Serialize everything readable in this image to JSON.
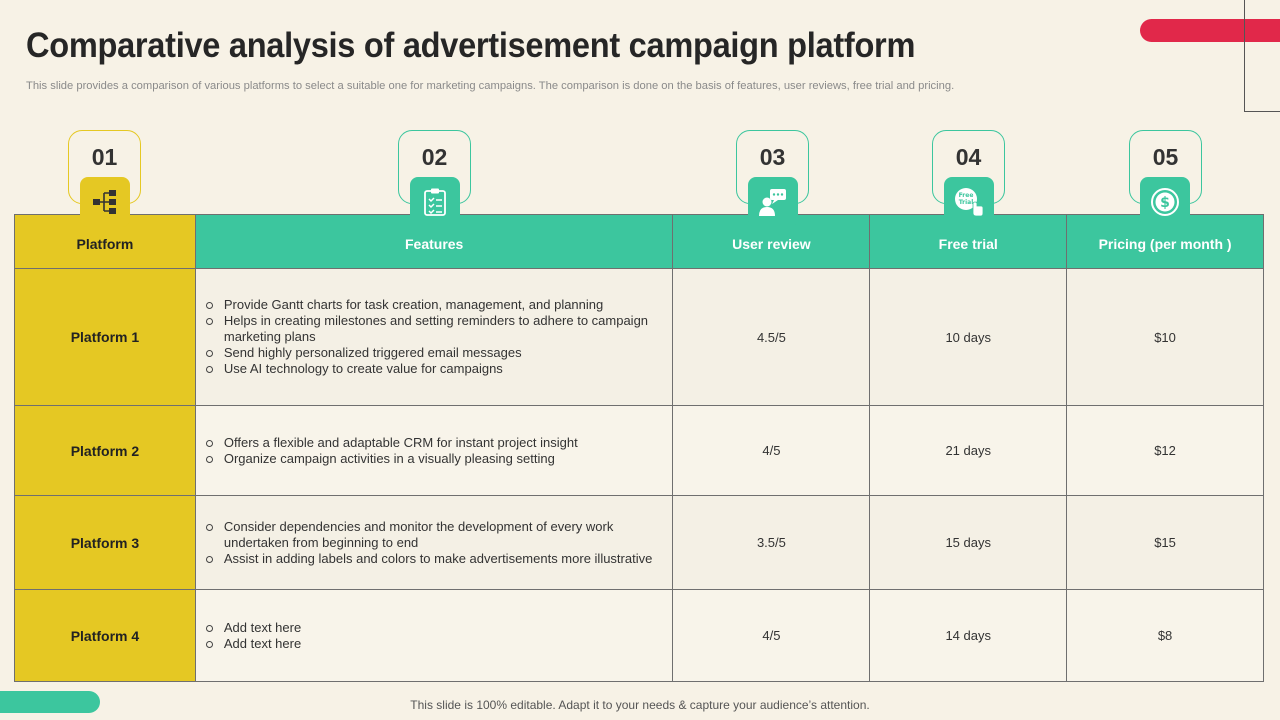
{
  "title": "Comparative analysis of advertisement campaign platform",
  "subtitle": "This slide provides a comparison of various platforms to select a suitable one for marketing campaigns. The comparison is done on the basis of features, user reviews, free trial and pricing.",
  "footer": "This slide is 100% editable. Adapt it to your needs & capture your audience’s attention.",
  "badges": [
    {
      "number": "01",
      "icon": "hierarchy-icon"
    },
    {
      "number": "02",
      "icon": "checklist-icon"
    },
    {
      "number": "03",
      "icon": "user-review-icon"
    },
    {
      "number": "04",
      "icon": "free-trial-icon"
    },
    {
      "number": "05",
      "icon": "dollar-icon"
    }
  ],
  "headers": [
    "Platform",
    "Features",
    "User review",
    "Free trial",
    "Pricing (per month )"
  ],
  "rows": [
    {
      "platform": "Platform 1",
      "features": [
        "Provide  Gantt charts for task creation, management,  and planning",
        "Helps in creating milestones and setting reminders to adhere to campaign marketing plans",
        "Send highly personalized triggered email messages",
        "Use AI technology to create value  for campaigns"
      ],
      "user_review": "4.5/5",
      "free_trial": "10 days",
      "pricing": "$10"
    },
    {
      "platform": "Platform 2",
      "features": [
        "Offers  a flexible and adaptable CRM for instant project insight",
        "Organize campaign  activities in a visually  pleasing setting"
      ],
      "user_review": "4/5",
      "free_trial": "21 days",
      "pricing": "$12"
    },
    {
      "platform": "Platform 3",
      "features": [
        "Consider dependencies  and monitor the development  of every  work undertaken from beginning to end",
        "Assist in adding labels and colors to make advertisements  more illustrative"
      ],
      "user_review": "3.5/5",
      "free_trial": "15 days",
      "pricing": "$15"
    },
    {
      "platform": "Platform 4",
      "features": [
        "Add text here",
        "Add text here"
      ],
      "user_review": "4/5",
      "free_trial": "14 days",
      "pricing": "$8"
    }
  ],
  "colors": {
    "accent_green": "#3cc69e",
    "accent_yellow": "#e5c823",
    "accent_red": "#e1284a",
    "background": "#f7f2e6"
  }
}
